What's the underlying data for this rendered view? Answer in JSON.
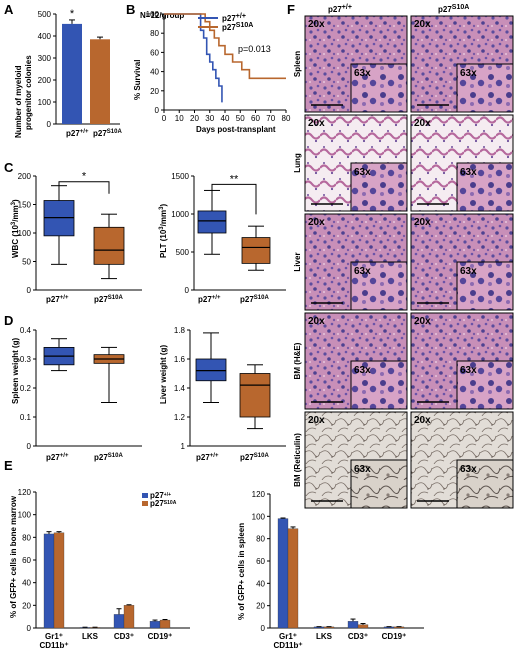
{
  "colors": {
    "wt": "#3355b3",
    "mut": "#b8672e",
    "wt_dark": "#1f3a80",
    "mut_dark": "#7e4420"
  },
  "groups": [
    "p27+/+",
    "p27S10A"
  ],
  "chart_data": [
    {
      "panel": "A",
      "type": "bar",
      "ylabel": "Number of myeloid progenitor colonies",
      "ylim": [
        0,
        500
      ],
      "yticks": [
        "0",
        "100",
        "200",
        "300",
        "400",
        "500"
      ],
      "categories": [
        "p27+/+",
        "p27S10A"
      ],
      "values": [
        455,
        385
      ],
      "errors": [
        18,
        10
      ],
      "annotations": [
        "*"
      ]
    },
    {
      "panel": "B",
      "type": "line",
      "title": "N=12/group",
      "xlabel": "Days post-transplant",
      "ylabel": "% Survival",
      "xlim": [
        0,
        80
      ],
      "ylim": [
        0,
        100
      ],
      "xticks": [
        "0",
        "10",
        "20",
        "30",
        "40",
        "50",
        "60",
        "70",
        "80"
      ],
      "yticks": [
        "0",
        "20",
        "40",
        "60",
        "80",
        "100"
      ],
      "annotation": "p=0.013",
      "series": [
        {
          "name": "p27+/+",
          "x": [
            0,
            22,
            24,
            26,
            28,
            30,
            32,
            34,
            36,
            38
          ],
          "y": [
            100,
            100,
            83,
            75,
            58,
            50,
            42,
            33,
            25,
            8
          ]
        },
        {
          "name": "p27S10A",
          "x": [
            0,
            24,
            27,
            30,
            33,
            36,
            40,
            45,
            51,
            56,
            62,
            80
          ],
          "y": [
            100,
            100,
            92,
            83,
            75,
            67,
            58,
            50,
            42,
            33,
            33,
            33
          ]
        }
      ]
    },
    {
      "panel": "C",
      "type": "box",
      "ylabel": "WBC (10³/mm³)",
      "ylim": [
        0,
        200
      ],
      "yticks": [
        "0",
        "50",
        "100",
        "150",
        "200"
      ],
      "categories": [
        "p27+/+",
        "p27S10A"
      ],
      "boxes": [
        {
          "min": 45,
          "q1": 95,
          "median": 127,
          "q3": 157,
          "max": 183
        },
        {
          "min": 20,
          "q1": 45,
          "median": 70,
          "q3": 110,
          "max": 133
        }
      ],
      "annotations": [
        "*"
      ]
    },
    {
      "panel": "C",
      "type": "box",
      "ylabel": "PLT (10³/mm³)",
      "ylim": [
        0,
        1500
      ],
      "yticks": [
        "0",
        "500",
        "1000",
        "1500"
      ],
      "categories": [
        "p27+/+",
        "p27S10A"
      ],
      "boxes": [
        {
          "min": 470,
          "q1": 750,
          "median": 910,
          "q3": 1040,
          "max": 1310
        },
        {
          "min": 260,
          "q1": 350,
          "median": 560,
          "q3": 690,
          "max": 840
        }
      ],
      "annotations": [
        "**"
      ]
    },
    {
      "panel": "D",
      "type": "box",
      "ylabel": "Spleen weight (g)",
      "ylim": [
        0,
        0.4
      ],
      "yticks": [
        "0",
        "0.1",
        "0.2",
        "0.3",
        "0.4"
      ],
      "categories": [
        "p27+/+",
        "p27S10A"
      ],
      "boxes": [
        {
          "min": 0.26,
          "q1": 0.28,
          "median": 0.31,
          "q3": 0.34,
          "max": 0.37
        },
        {
          "min": 0.15,
          "q1": 0.285,
          "median": 0.3,
          "q3": 0.315,
          "max": 0.34
        }
      ]
    },
    {
      "panel": "D",
      "type": "box",
      "ylabel": "Liver weight (g)",
      "ylim": [
        1.0,
        1.8
      ],
      "yticks": [
        "1",
        "1.2",
        "1.4",
        "1.6",
        "1.8"
      ],
      "categories": [
        "p27+/+",
        "p27S10A"
      ],
      "boxes": [
        {
          "min": 1.3,
          "q1": 1.45,
          "median": 1.52,
          "q3": 1.6,
          "max": 1.78
        },
        {
          "min": 1.12,
          "q1": 1.2,
          "median": 1.42,
          "q3": 1.5,
          "max": 1.56
        }
      ]
    },
    {
      "panel": "E",
      "type": "bar",
      "ylabel": "% of GFP+ cells in bone marrow",
      "ylim": [
        0,
        120
      ],
      "yticks": [
        "0",
        "20",
        "40",
        "60",
        "80",
        "100",
        "120"
      ],
      "categories": [
        "Gr1⁺\nCD11b⁺",
        "LKS",
        "CD3⁺",
        "CD19⁺"
      ],
      "series": [
        {
          "name": "p27+/+",
          "values": [
            83,
            0.5,
            12,
            6
          ],
          "errors": [
            2,
            0.2,
            5,
            1
          ]
        },
        {
          "name": "p27S10A",
          "values": [
            84,
            0.5,
            20,
            7
          ],
          "errors": [
            1,
            0.2,
            0.5,
            0.5
          ]
        }
      ]
    },
    {
      "panel": "E",
      "type": "bar",
      "ylabel": "% of GFP+ cells in spleen",
      "ylim": [
        0,
        120
      ],
      "yticks": [
        "0",
        "20",
        "40",
        "60",
        "80",
        "100",
        "120"
      ],
      "categories": [
        "Gr1⁺\nCD11b⁺",
        "LKS",
        "CD3⁺",
        "CD19⁺"
      ],
      "series": [
        {
          "name": "p27+/+",
          "values": [
            98,
            1,
            6,
            1
          ],
          "errors": [
            0.5,
            0.2,
            2,
            0.2
          ]
        },
        {
          "name": "p27S10A",
          "values": [
            89,
            1,
            3,
            1
          ],
          "errors": [
            1.5,
            0.2,
            1,
            0.2
          ]
        }
      ]
    }
  ],
  "histology": {
    "panel": "F",
    "columns": [
      "p27+/+",
      "p27S10A"
    ],
    "rows": [
      "Spleen",
      "Lung",
      "Liver",
      "BM (H&E)",
      "BM (Reticulin)"
    ],
    "low_mag": "20x",
    "high_mag": "63x"
  }
}
